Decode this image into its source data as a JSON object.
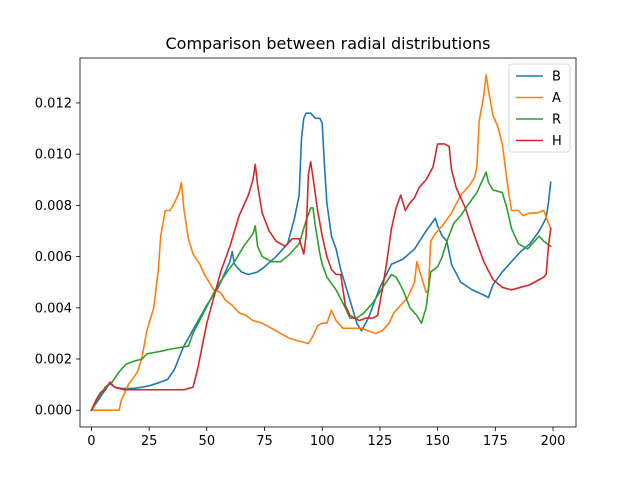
{
  "chart_data": {
    "type": "line",
    "title": "Comparison between radial distributions",
    "xlabel": "",
    "ylabel": "",
    "xlim": [
      -4.95,
      209.95
    ],
    "ylim": [
      -0.000655,
      0.013755
    ],
    "x_ticks": [
      0,
      25,
      50,
      75,
      100,
      125,
      150,
      175,
      200
    ],
    "y_ticks": [
      0.0,
      0.002,
      0.004,
      0.006,
      0.008,
      0.01,
      0.012
    ],
    "y_tick_labels": [
      "0.000",
      "0.002",
      "0.004",
      "0.006",
      "0.008",
      "0.010",
      "0.012"
    ],
    "legend_position": "upper right",
    "series": [
      {
        "name": "B",
        "color": "#1f77b4",
        "points": [
          [
            0,
            0
          ],
          [
            3,
            0.0004
          ],
          [
            6,
            0.0008
          ],
          [
            8,
            0.00105
          ],
          [
            10,
            0.0009
          ],
          [
            13,
            0.00085
          ],
          [
            18,
            0.00085
          ],
          [
            22,
            0.0009
          ],
          [
            25,
            0.00095
          ],
          [
            30,
            0.0011
          ],
          [
            33,
            0.0012
          ],
          [
            36,
            0.0016
          ],
          [
            40,
            0.0025
          ],
          [
            45,
            0.0033
          ],
          [
            50,
            0.0041
          ],
          [
            55,
            0.0048
          ],
          [
            58,
            0.0054
          ],
          [
            60,
            0.0058
          ],
          [
            61,
            0.0062
          ],
          [
            62,
            0.0057
          ],
          [
            65,
            0.0054
          ],
          [
            68,
            0.0053
          ],
          [
            72,
            0.0054
          ],
          [
            75,
            0.0056
          ],
          [
            80,
            0.006
          ],
          [
            85,
            0.0065
          ],
          [
            88,
            0.0075
          ],
          [
            90,
            0.0084
          ],
          [
            91,
            0.0106
          ],
          [
            92,
            0.0114
          ],
          [
            93,
            0.0116
          ],
          [
            95,
            0.0116
          ],
          [
            97,
            0.0114
          ],
          [
            99,
            0.0114
          ],
          [
            100,
            0.0112
          ],
          [
            101,
            0.0095
          ],
          [
            102,
            0.0081
          ],
          [
            104,
            0.0068
          ],
          [
            106,
            0.0063
          ],
          [
            108,
            0.0055
          ],
          [
            112,
            0.0043
          ],
          [
            115,
            0.0034
          ],
          [
            117,
            0.0031
          ],
          [
            120,
            0.0036
          ],
          [
            125,
            0.0048
          ],
          [
            130,
            0.0057
          ],
          [
            135,
            0.0059
          ],
          [
            140,
            0.0063
          ],
          [
            145,
            0.007
          ],
          [
            149,
            0.0075
          ],
          [
            150,
            0.0072
          ],
          [
            152,
            0.0068
          ],
          [
            154,
            0.0066
          ],
          [
            156,
            0.0057
          ],
          [
            160,
            0.005
          ],
          [
            165,
            0.0047
          ],
          [
            170,
            0.0045
          ],
          [
            172,
            0.0044
          ],
          [
            174,
            0.0049
          ],
          [
            178,
            0.0054
          ],
          [
            182,
            0.0058
          ],
          [
            186,
            0.0062
          ],
          [
            190,
            0.0065
          ],
          [
            194,
            0.007
          ],
          [
            197,
            0.0075
          ],
          [
            198,
            0.0081
          ],
          [
            199,
            0.0089
          ]
        ]
      },
      {
        "name": "A",
        "color": "#ff7f0e",
        "points": [
          [
            0,
            0
          ],
          [
            2,
            0
          ],
          [
            4,
            0
          ],
          [
            12,
            0
          ],
          [
            13,
            0.0004
          ],
          [
            16,
            0.001
          ],
          [
            20,
            0.0015
          ],
          [
            22,
            0.0021
          ],
          [
            24,
            0.0031
          ],
          [
            27,
            0.004
          ],
          [
            29,
            0.0055
          ],
          [
            30,
            0.0068
          ],
          [
            32,
            0.0078
          ],
          [
            34,
            0.0078
          ],
          [
            36,
            0.0081
          ],
          [
            38,
            0.0085
          ],
          [
            39,
            0.0089
          ],
          [
            40,
            0.0079
          ],
          [
            41,
            0.0073
          ],
          [
            42,
            0.0067
          ],
          [
            44,
            0.0061
          ],
          [
            47,
            0.0057
          ],
          [
            49,
            0.0053
          ],
          [
            51,
            0.005
          ],
          [
            53,
            0.0047
          ],
          [
            56,
            0.0046
          ],
          [
            58,
            0.0043
          ],
          [
            61,
            0.0041
          ],
          [
            64,
            0.0038
          ],
          [
            67,
            0.0037
          ],
          [
            70,
            0.0035
          ],
          [
            74,
            0.0034
          ],
          [
            78,
            0.0032
          ],
          [
            82,
            0.003
          ],
          [
            86,
            0.0028
          ],
          [
            90,
            0.0027
          ],
          [
            94,
            0.0026
          ],
          [
            96,
            0.0029
          ],
          [
            98,
            0.0033
          ],
          [
            100,
            0.0034
          ],
          [
            102,
            0.0034
          ],
          [
            104,
            0.0039
          ],
          [
            106,
            0.0035
          ],
          [
            109,
            0.0032
          ],
          [
            113,
            0.0032
          ],
          [
            117,
            0.0032
          ],
          [
            120,
            0.0031
          ],
          [
            123,
            0.003
          ],
          [
            126,
            0.0031
          ],
          [
            129,
            0.0034
          ],
          [
            131,
            0.0038
          ],
          [
            134,
            0.0041
          ],
          [
            137,
            0.0044
          ],
          [
            140,
            0.005
          ],
          [
            141,
            0.0058
          ],
          [
            143,
            0.0052
          ],
          [
            145,
            0.0046
          ],
          [
            146,
            0.0047
          ],
          [
            147,
            0.0066
          ],
          [
            149,
            0.0069
          ],
          [
            152,
            0.0072
          ],
          [
            156,
            0.0077
          ],
          [
            160,
            0.0084
          ],
          [
            164,
            0.0088
          ],
          [
            166,
            0.0091
          ],
          [
            167,
            0.0095
          ],
          [
            168,
            0.0113
          ],
          [
            170,
            0.0123
          ],
          [
            171,
            0.0131
          ],
          [
            172,
            0.0125
          ],
          [
            174,
            0.0115
          ],
          [
            176,
            0.0111
          ],
          [
            178,
            0.0104
          ],
          [
            180,
            0.009
          ],
          [
            182,
            0.0078
          ],
          [
            185,
            0.0078
          ],
          [
            187,
            0.0076
          ],
          [
            190,
            0.0077
          ],
          [
            193,
            0.0077
          ],
          [
            196,
            0.0078
          ],
          [
            198,
            0.0073
          ],
          [
            199,
            0.0071
          ]
        ]
      },
      {
        "name": "R",
        "color": "#2ca02c",
        "points": [
          [
            0,
            0
          ],
          [
            3,
            0.0005
          ],
          [
            6,
            0.0009
          ],
          [
            9,
            0.0011
          ],
          [
            12,
            0.0015
          ],
          [
            15,
            0.0018
          ],
          [
            18,
            0.0019
          ],
          [
            22,
            0.002
          ],
          [
            24,
            0.0022
          ],
          [
            30,
            0.0023
          ],
          [
            35,
            0.0024
          ],
          [
            42,
            0.0025
          ],
          [
            44,
            0.003
          ],
          [
            48,
            0.0037
          ],
          [
            52,
            0.0044
          ],
          [
            55,
            0.0049
          ],
          [
            58,
            0.0053
          ],
          [
            62,
            0.0058
          ],
          [
            66,
            0.0064
          ],
          [
            70,
            0.0069
          ],
          [
            71,
            0.0072
          ],
          [
            72,
            0.0064
          ],
          [
            74,
            0.006
          ],
          [
            78,
            0.0058
          ],
          [
            82,
            0.0058
          ],
          [
            86,
            0.0061
          ],
          [
            90,
            0.0065
          ],
          [
            93,
            0.0074
          ],
          [
            95,
            0.0079
          ],
          [
            96,
            0.0079
          ],
          [
            97,
            0.0072
          ],
          [
            99,
            0.0061
          ],
          [
            100,
            0.0057
          ],
          [
            102,
            0.0052
          ],
          [
            106,
            0.0047
          ],
          [
            110,
            0.004
          ],
          [
            112,
            0.0036
          ],
          [
            115,
            0.0036
          ],
          [
            118,
            0.0038
          ],
          [
            122,
            0.0042
          ],
          [
            127,
            0.0049
          ],
          [
            130,
            0.0053
          ],
          [
            132,
            0.0052
          ],
          [
            135,
            0.0047
          ],
          [
            138,
            0.004
          ],
          [
            141,
            0.0037
          ],
          [
            143,
            0.0034
          ],
          [
            145,
            0.004
          ],
          [
            147,
            0.0054
          ],
          [
            150,
            0.0056
          ],
          [
            152,
            0.006
          ],
          [
            154,
            0.0066
          ],
          [
            157,
            0.0073
          ],
          [
            160,
            0.0076
          ],
          [
            163,
            0.008
          ],
          [
            167,
            0.0085
          ],
          [
            170,
            0.0091
          ],
          [
            171,
            0.0093
          ],
          [
            172,
            0.0089
          ],
          [
            174,
            0.0086
          ],
          [
            178,
            0.0085
          ],
          [
            180,
            0.0079
          ],
          [
            182,
            0.0071
          ],
          [
            185,
            0.0065
          ],
          [
            189,
            0.0063
          ],
          [
            192,
            0.0066
          ],
          [
            194,
            0.0068
          ],
          [
            196,
            0.0066
          ],
          [
            199,
            0.0064
          ]
        ]
      },
      {
        "name": "H",
        "color": "#d62728",
        "points": [
          [
            0,
            0
          ],
          [
            2,
            0.0004
          ],
          [
            4,
            0.0007
          ],
          [
            6,
            0.0008
          ],
          [
            8,
            0.0011
          ],
          [
            10,
            0.0009
          ],
          [
            14,
            0.0008
          ],
          [
            20,
            0.0008
          ],
          [
            25,
            0.0008
          ],
          [
            30,
            0.0008
          ],
          [
            35,
            0.0008
          ],
          [
            40,
            0.0008
          ],
          [
            44,
            0.0009
          ],
          [
            46,
            0.0016
          ],
          [
            48,
            0.0025
          ],
          [
            50,
            0.0034
          ],
          [
            53,
            0.0044
          ],
          [
            56,
            0.0054
          ],
          [
            60,
            0.0064
          ],
          [
            64,
            0.0076
          ],
          [
            68,
            0.0084
          ],
          [
            70,
            0.009
          ],
          [
            71,
            0.0096
          ],
          [
            72,
            0.0088
          ],
          [
            74,
            0.0077
          ],
          [
            77,
            0.007
          ],
          [
            80,
            0.0066
          ],
          [
            84,
            0.0064
          ],
          [
            87,
            0.0067
          ],
          [
            90,
            0.0067
          ],
          [
            92,
            0.0061
          ],
          [
            93,
            0.0068
          ],
          [
            94,
            0.0092
          ],
          [
            95,
            0.0097
          ],
          [
            96,
            0.0091
          ],
          [
            98,
            0.0078
          ],
          [
            100,
            0.0068
          ],
          [
            102,
            0.006
          ],
          [
            104,
            0.0055
          ],
          [
            106,
            0.0053
          ],
          [
            108,
            0.0053
          ],
          [
            110,
            0.0041
          ],
          [
            112,
            0.0037
          ],
          [
            116,
            0.0035
          ],
          [
            119,
            0.0036
          ],
          [
            122,
            0.0036
          ],
          [
            124,
            0.0037
          ],
          [
            126,
            0.0047
          ],
          [
            128,
            0.0058
          ],
          [
            130,
            0.0071
          ],
          [
            132,
            0.0079
          ],
          [
            134,
            0.0084
          ],
          [
            136,
            0.0078
          ],
          [
            138,
            0.0081
          ],
          [
            140,
            0.0083
          ],
          [
            142,
            0.0087
          ],
          [
            145,
            0.009
          ],
          [
            148,
            0.0095
          ],
          [
            150,
            0.0104
          ],
          [
            153,
            0.0104
          ],
          [
            155,
            0.0103
          ],
          [
            156,
            0.0094
          ],
          [
            158,
            0.0087
          ],
          [
            162,
            0.0079
          ],
          [
            166,
            0.0068
          ],
          [
            170,
            0.0058
          ],
          [
            174,
            0.0051
          ],
          [
            178,
            0.0048
          ],
          [
            182,
            0.0047
          ],
          [
            186,
            0.0048
          ],
          [
            190,
            0.0049
          ],
          [
            194,
            0.0051
          ],
          [
            196,
            0.0052
          ],
          [
            197,
            0.0053
          ],
          [
            198,
            0.0064
          ],
          [
            199,
            0.0071
          ]
        ]
      }
    ]
  }
}
